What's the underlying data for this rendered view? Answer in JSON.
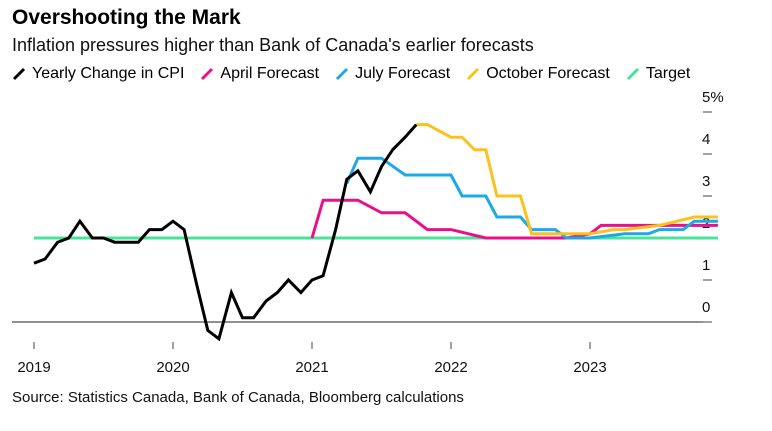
{
  "title": "Overshooting the Mark",
  "subtitle": "Inflation pressures higher than Bank of Canada's earlier forecasts",
  "source": "Source: Statistics Canada, Bank of Canada, Bloomberg calculations",
  "chart_data": {
    "type": "line",
    "title": "Overshooting the Mark",
    "xlabel": "",
    "ylabel": "",
    "ylim": [
      0,
      5
    ],
    "xlim": [
      2019.0,
      2024.0
    ],
    "x_ticks": [
      "2019",
      "2020",
      "2021",
      "2022",
      "2023"
    ],
    "y_ticks": [
      "0",
      "1",
      "2",
      "3",
      "4",
      "5%"
    ],
    "legend_position": "top",
    "series": [
      {
        "name": "Yearly Change in CPI",
        "color": "#000000",
        "x": [
          2019.0,
          2019.08,
          2019.17,
          2019.25,
          2019.33,
          2019.42,
          2019.5,
          2019.58,
          2019.67,
          2019.75,
          2019.83,
          2019.92,
          2020.0,
          2020.08,
          2020.17,
          2020.25,
          2020.33,
          2020.42,
          2020.5,
          2020.58,
          2020.67,
          2020.75,
          2020.83,
          2020.92,
          2021.0,
          2021.08,
          2021.17,
          2021.25,
          2021.33,
          2021.42,
          2021.5,
          2021.58,
          2021.67,
          2021.75
        ],
        "values": [
          1.4,
          1.5,
          1.9,
          2.0,
          2.4,
          2.0,
          2.0,
          1.9,
          1.9,
          1.9,
          2.2,
          2.2,
          2.4,
          2.2,
          0.9,
          -0.2,
          -0.4,
          0.7,
          0.1,
          0.1,
          0.5,
          0.7,
          1.0,
          0.7,
          1.0,
          1.1,
          2.2,
          3.4,
          3.6,
          3.1,
          3.7,
          4.1,
          4.4,
          4.7
        ]
      },
      {
        "name": "April Forecast",
        "color": "#e8118c",
        "x": [
          2021.0,
          2021.08,
          2021.25,
          2021.33,
          2021.5,
          2021.67,
          2021.83,
          2022.0,
          2022.25,
          2022.5,
          2022.75,
          2022.83,
          2023.0,
          2023.08,
          2023.25,
          2023.5,
          2023.75,
          2023.92
        ],
        "values": [
          2.0,
          2.9,
          2.9,
          2.9,
          2.6,
          2.6,
          2.2,
          2.2,
          2.0,
          2.0,
          2.0,
          2.0,
          2.1,
          2.3,
          2.3,
          2.3,
          2.3,
          2.3
        ]
      },
      {
        "name": "July Forecast",
        "color": "#1da8e8",
        "x": [
          2021.25,
          2021.33,
          2021.5,
          2021.67,
          2021.83,
          2022.0,
          2022.08,
          2022.25,
          2022.33,
          2022.5,
          2022.58,
          2022.75,
          2022.83,
          2023.0,
          2023.25,
          2023.42,
          2023.5,
          2023.67,
          2023.75,
          2023.92
        ],
        "values": [
          3.3,
          3.9,
          3.9,
          3.5,
          3.5,
          3.5,
          3.0,
          3.0,
          2.5,
          2.5,
          2.2,
          2.2,
          2.0,
          2.0,
          2.1,
          2.1,
          2.2,
          2.2,
          2.4,
          2.4
        ]
      },
      {
        "name": "October Forecast",
        "color": "#fbc21d",
        "x": [
          2021.75,
          2021.83,
          2022.0,
          2022.08,
          2022.17,
          2022.25,
          2022.33,
          2022.5,
          2022.58,
          2022.75,
          2022.83,
          2023.0,
          2023.17,
          2023.25,
          2023.5,
          2023.75,
          2023.92
        ],
        "values": [
          4.7,
          4.7,
          4.4,
          4.4,
          4.1,
          4.1,
          3.0,
          3.0,
          2.1,
          2.1,
          2.1,
          2.1,
          2.2,
          2.2,
          2.3,
          2.5,
          2.5
        ]
      },
      {
        "name": "Target",
        "color": "#4ae39a",
        "x": [
          2019.0,
          2023.92
        ],
        "values": [
          2.0,
          2.0
        ]
      }
    ]
  }
}
